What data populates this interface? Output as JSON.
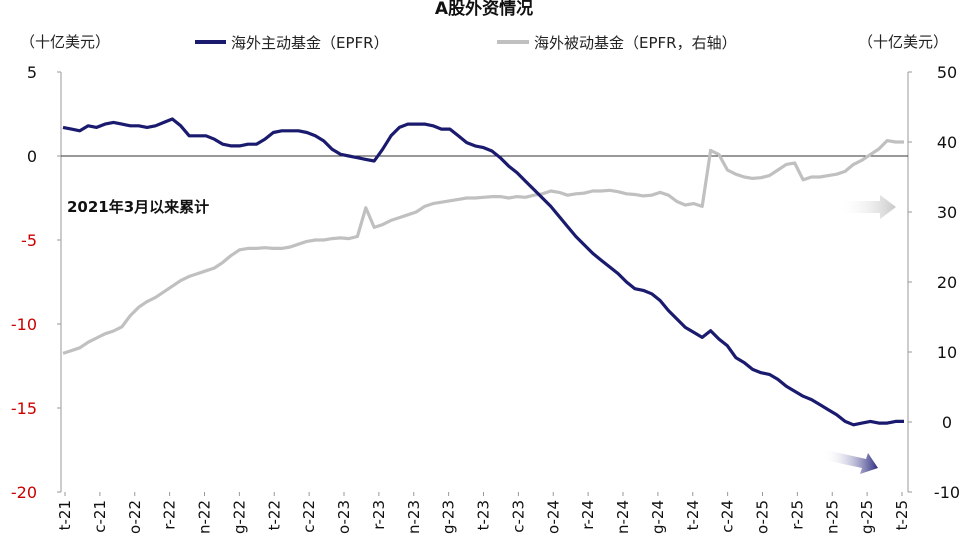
{
  "chart_data": {
    "type": "line",
    "title": "A股外资情况",
    "annotation": "2021年3月以来累计",
    "y_left": {
      "label": "（十亿美元）",
      "range": [
        -20,
        5
      ],
      "ticks": [
        "5",
        "0",
        "-5",
        "-10",
        "-15",
        "-20"
      ],
      "tick_values": [
        5,
        0,
        -5,
        -10,
        -15,
        -20
      ]
    },
    "y_right": {
      "label": "（十亿美元）",
      "range": [
        -10,
        50
      ],
      "ticks": [
        "50",
        "40",
        "30",
        "20",
        "10",
        "0",
        "-10"
      ],
      "tick_values": [
        50,
        40,
        30,
        20,
        10,
        0,
        -10
      ]
    },
    "x_ticks": [
      "t-21",
      "c-21",
      "o-22",
      "r-22",
      "n-22",
      "g-22",
      "t-22",
      "c-22",
      "o-23",
      "r-23",
      "n-23",
      "g-23",
      "t-23",
      "c-23",
      "o-24",
      "r-24",
      "n-24",
      "g-24",
      "t-24",
      "c-24",
      "o-25",
      "r-25",
      "n-25",
      "g-25",
      "t-25"
    ],
    "legend_position": "top",
    "colors": {
      "active": "#1a1a6e",
      "passive": "#c0c0c0",
      "left_tick_neg": "#cc0000",
      "arrow_gray": "#c8c8c8",
      "arrow_navy": "#2c2c80"
    },
    "series": [
      {
        "name": "海外主动基金（EPFR）",
        "axis": "left",
        "values": [
          1.7,
          1.6,
          1.5,
          1.8,
          1.7,
          1.9,
          2.0,
          1.9,
          1.8,
          1.8,
          1.7,
          1.8,
          2.0,
          2.2,
          1.8,
          1.2,
          1.2,
          1.2,
          1.0,
          0.7,
          0.6,
          0.6,
          0.7,
          0.7,
          1.0,
          1.4,
          1.5,
          1.5,
          1.5,
          1.4,
          1.2,
          0.9,
          0.4,
          0.1,
          0.0,
          -0.1,
          -0.2,
          -0.3,
          0.4,
          1.2,
          1.7,
          1.9,
          1.9,
          1.9,
          1.8,
          1.6,
          1.6,
          1.2,
          0.8,
          0.6,
          0.5,
          0.3,
          -0.1,
          -0.6,
          -1.0,
          -1.5,
          -2.0,
          -2.5,
          -3.0,
          -3.6,
          -4.2,
          -4.8,
          -5.3,
          -5.8,
          -6.2,
          -6.6,
          -7.0,
          -7.5,
          -7.9,
          -8.0,
          -8.2,
          -8.6,
          -9.2,
          -9.7,
          -10.2,
          -10.5,
          -10.8,
          -10.4,
          -10.9,
          -11.3,
          -12.0,
          -12.3,
          -12.7,
          -12.9,
          -13.0,
          -13.3,
          -13.7,
          -14.0,
          -14.3,
          -14.5,
          -14.8,
          -15.1,
          -15.4,
          -15.8,
          -16.0,
          -15.9,
          -15.8,
          -15.9,
          -15.9,
          -15.8,
          -15.8
        ]
      },
      {
        "name": "海外被动基金（EPFR，右轴）",
        "axis": "right",
        "values": [
          9.8,
          10.2,
          10.6,
          11.4,
          12.0,
          12.6,
          13.0,
          13.6,
          15.2,
          16.4,
          17.2,
          17.8,
          18.6,
          19.4,
          20.2,
          20.8,
          21.2,
          21.6,
          22.0,
          22.8,
          23.8,
          24.6,
          24.8,
          24.8,
          24.9,
          24.8,
          24.8,
          25.0,
          25.4,
          25.8,
          26.0,
          26.0,
          26.2,
          26.3,
          26.2,
          26.5,
          30.6,
          27.8,
          28.2,
          28.8,
          29.2,
          29.6,
          30.0,
          30.8,
          31.2,
          31.4,
          31.6,
          31.8,
          32.0,
          32.0,
          32.1,
          32.2,
          32.2,
          32.0,
          32.2,
          32.1,
          32.4,
          32.6,
          33.0,
          32.8,
          32.4,
          32.6,
          32.7,
          33.0,
          33.0,
          33.1,
          32.9,
          32.6,
          32.5,
          32.3,
          32.4,
          32.8,
          32.4,
          31.5,
          31.0,
          31.2,
          30.8,
          38.8,
          38.2,
          36.0,
          35.4,
          35.0,
          34.8,
          34.9,
          35.2,
          36.0,
          36.8,
          37.0,
          34.6,
          35.0,
          35.0,
          35.2,
          35.4,
          35.8,
          36.8,
          37.4,
          38.2,
          39.0,
          40.2,
          40.0,
          40.0
        ]
      }
    ]
  }
}
